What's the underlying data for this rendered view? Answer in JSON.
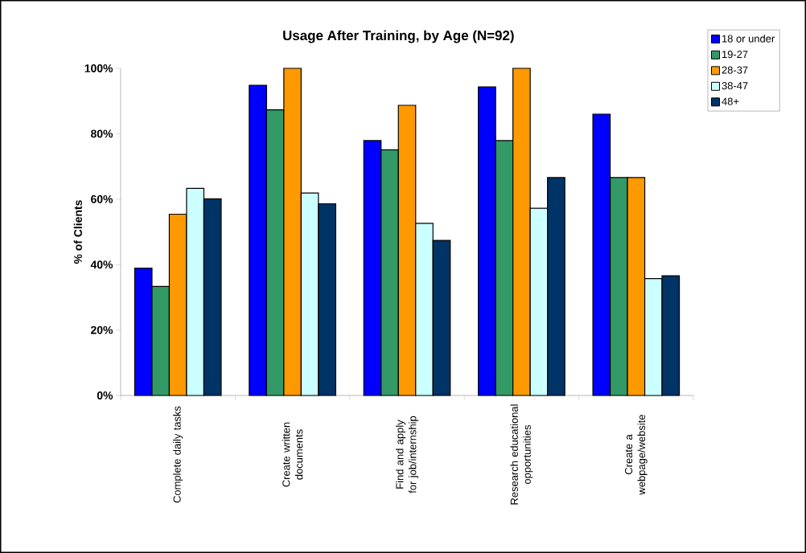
{
  "chart_data": {
    "type": "bar",
    "title": "Usage After Training, by Age (N=92)",
    "ylabel": "% of Clients",
    "categories": [
      "Complete daily tasks",
      "Create written documents",
      "Find and apply for job/internship",
      "Research educational opportunities",
      "Create a webpage/website"
    ],
    "series": [
      {
        "name": "18 or under",
        "color": "#0000ff",
        "values": [
          38.9,
          94.8,
          77.9,
          94.3,
          86.0
        ]
      },
      {
        "name": "19-27",
        "color": "#339966",
        "values": [
          33.3,
          87.3,
          75.1,
          77.9,
          66.6
        ]
      },
      {
        "name": "28-37",
        "color": "#ff9900",
        "values": [
          55.4,
          100,
          88.7,
          100,
          66.6
        ]
      },
      {
        "name": "38-47",
        "color": "#ccffff",
        "values": [
          63.3,
          61.9,
          52.6,
          57.2,
          35.7
        ]
      },
      {
        "name": "48+",
        "color": "#003366",
        "values": [
          60.1,
          58.6,
          47.4,
          66.6,
          36.6
        ]
      }
    ],
    "ylim": [
      0,
      100
    ],
    "yticks": [
      {
        "value": 0,
        "label": "0%"
      },
      {
        "value": 20,
        "label": "20%"
      },
      {
        "value": 40,
        "label": "40%"
      },
      {
        "value": 60,
        "label": "60%"
      },
      {
        "value": 80,
        "label": "80%"
      },
      {
        "value": 100,
        "label": "100%"
      }
    ],
    "legend": "top right"
  }
}
